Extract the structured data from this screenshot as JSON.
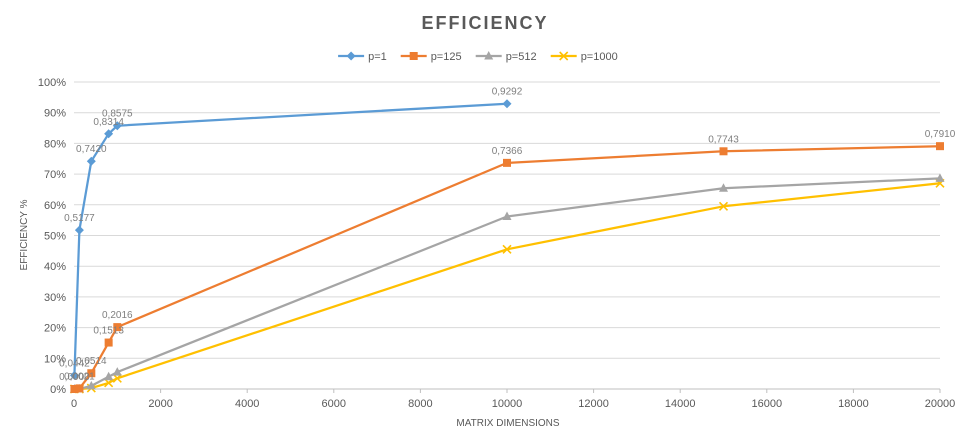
{
  "chart_data": {
    "type": "line",
    "title": "EFFICIENCY",
    "xlabel": "MATRIX DIMENSIONS",
    "ylabel": "EFFICIENCY %",
    "xlim": [
      0,
      20000
    ],
    "ylim": [
      0,
      1
    ],
    "x_ticks": [
      "0",
      "2000",
      "4000",
      "6000",
      "8000",
      "10000",
      "12000",
      "14000",
      "16000",
      "18000",
      "20000"
    ],
    "y_ticks": [
      "0%",
      "10%",
      "20%",
      "30%",
      "40%",
      "50%",
      "60%",
      "70%",
      "80%",
      "90%",
      "100%"
    ],
    "grid": "horizontal",
    "legend_position": "top",
    "series": [
      {
        "name": "p=1",
        "color": "#5b9bd5",
        "marker": "diamond",
        "points": [
          {
            "x": 10,
            "y": 0.0442,
            "label": "0,0442"
          },
          {
            "x": 125,
            "y": 0.5177,
            "label": "0,5177"
          },
          {
            "x": 400,
            "y": 0.742,
            "label": "0,7420"
          },
          {
            "x": 800,
            "y": 0.8314,
            "label": "0,8314"
          },
          {
            "x": 1000,
            "y": 0.8575,
            "label": "0,8575"
          },
          {
            "x": 10000,
            "y": 0.9292,
            "label": "0,9292"
          }
        ]
      },
      {
        "name": "p=125",
        "color": "#ed7d31",
        "marker": "square",
        "points": [
          {
            "x": 10,
            "y": 0.0,
            "label": "0,0000"
          },
          {
            "x": 125,
            "y": 0.002,
            "label": "0,0021"
          },
          {
            "x": 400,
            "y": 0.0514,
            "label": "0,0514"
          },
          {
            "x": 800,
            "y": 0.1513,
            "label": "0,1513"
          },
          {
            "x": 1000,
            "y": 0.2016,
            "label": "0,2016"
          },
          {
            "x": 10000,
            "y": 0.7366,
            "label": "0,7366"
          },
          {
            "x": 15000,
            "y": 0.7743,
            "label": "0,7743"
          },
          {
            "x": 20000,
            "y": 0.791,
            "label": "0,7910"
          }
        ]
      },
      {
        "name": "p=512",
        "color": "#a5a5a5",
        "marker": "triangle",
        "points": [
          {
            "x": 10,
            "y": 0.0
          },
          {
            "x": 125,
            "y": 0.0
          },
          {
            "x": 400,
            "y": 0.01
          },
          {
            "x": 800,
            "y": 0.04
          },
          {
            "x": 1000,
            "y": 0.055
          },
          {
            "x": 10000,
            "y": 0.562
          },
          {
            "x": 15000,
            "y": 0.654
          },
          {
            "x": 20000,
            "y": 0.686
          }
        ]
      },
      {
        "name": "p=1000",
        "color": "#ffc000",
        "marker": "x",
        "points": [
          {
            "x": 10,
            "y": 0.0
          },
          {
            "x": 125,
            "y": 0.0
          },
          {
            "x": 400,
            "y": 0.003
          },
          {
            "x": 800,
            "y": 0.02
          },
          {
            "x": 1000,
            "y": 0.035
          },
          {
            "x": 10000,
            "y": 0.455
          },
          {
            "x": 15000,
            "y": 0.595
          },
          {
            "x": 20000,
            "y": 0.67
          }
        ]
      }
    ]
  }
}
